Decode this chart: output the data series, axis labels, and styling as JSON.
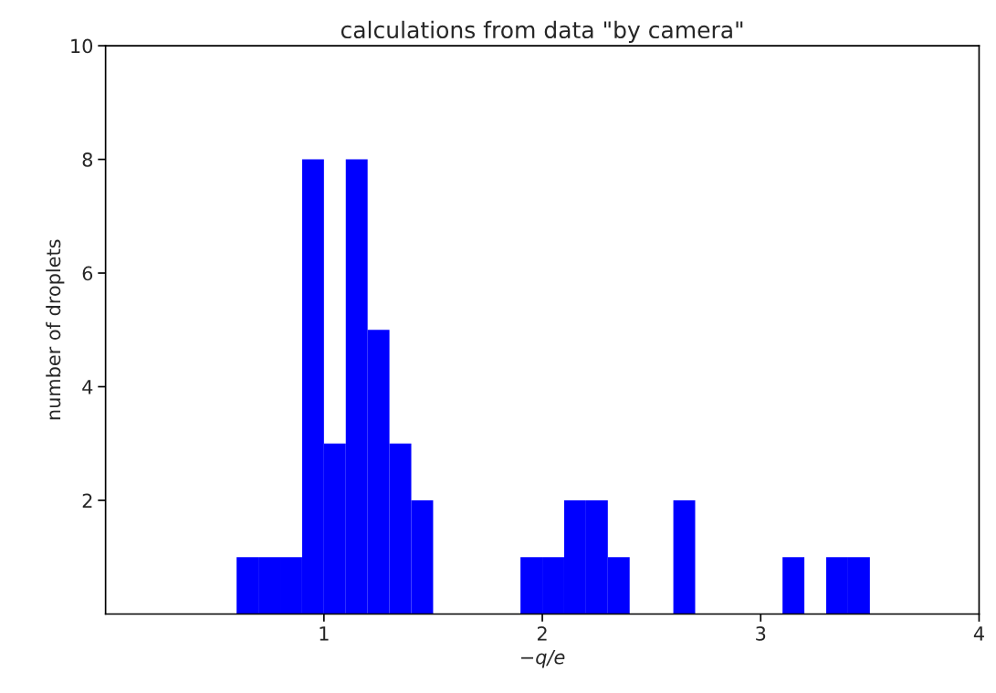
{
  "chart_data": {
    "type": "histogram",
    "title": "calculations from data \"by camera\"",
    "xlabel": "−q/e",
    "ylabel": "number of droplets",
    "bins": [
      0.6,
      0.7,
      0.8,
      0.9,
      1.0,
      1.1,
      1.2,
      1.3,
      1.4,
      1.5,
      1.6,
      1.7,
      1.8,
      1.9,
      2.0,
      2.1,
      2.2,
      2.3,
      2.4,
      2.5,
      2.6,
      2.7,
      2.8,
      2.9,
      3.0,
      3.1,
      3.2,
      3.3,
      3.4,
      3.5
    ],
    "values": [
      1,
      1,
      1,
      8,
      3,
      8,
      5,
      3,
      2,
      0,
      0,
      0,
      0,
      1,
      1,
      2,
      2,
      1,
      0,
      0,
      2,
      0,
      0,
      0,
      0,
      1,
      0,
      1,
      1
    ],
    "color": "#0000ff",
    "xlim": [
      0,
      4
    ],
    "xticks": [
      1,
      2,
      3,
      4
    ],
    "ylim": [
      0,
      10
    ],
    "yticks": [
      2,
      4,
      6,
      8,
      10
    ],
    "grid": false,
    "legend": false
  }
}
